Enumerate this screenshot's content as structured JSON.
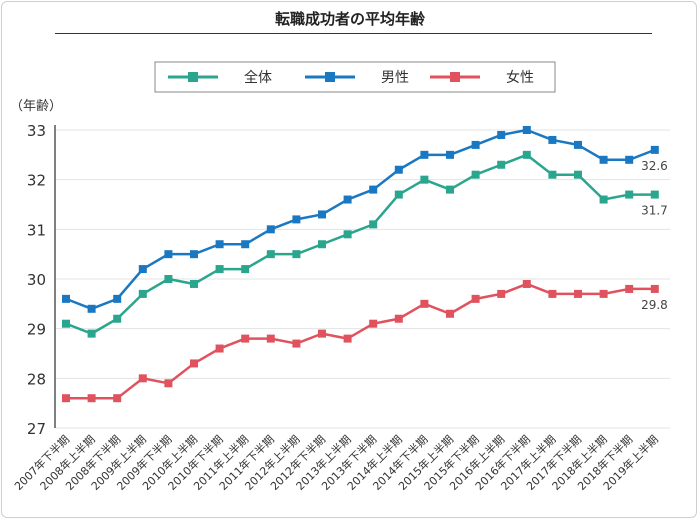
{
  "chart_data": {
    "type": "line",
    "title": "転職成功者の平均年齢",
    "ylabel": "（年齢）",
    "xlabel": "",
    "ylim": [
      27,
      33
    ],
    "yticks": [
      27,
      28,
      29,
      30,
      31,
      32,
      33
    ],
    "grid": true,
    "legend_position": "top-center",
    "categories": [
      "2007年下半期",
      "2008年上半期",
      "2008年下半期",
      "2009年上半期",
      "2009年下半期",
      "2010年上半期",
      "2010年下半期",
      "2011年上半期",
      "2011年下半期",
      "2012年上半期",
      "2012年下半期",
      "2013年上半期",
      "2013年下半期",
      "2014年上半期",
      "2014年下半期",
      "2015年上半期",
      "2015年下半期",
      "2016年上半期",
      "2016年下半期",
      "2017年上半期",
      "2017年下半期",
      "2018年上半期",
      "2018年下半期",
      "2019年上半期"
    ],
    "series": [
      {
        "name": "全体",
        "color": "#2aa58e",
        "end_label": "31.7",
        "values": [
          29.1,
          28.9,
          29.2,
          29.7,
          30.0,
          29.9,
          30.2,
          30.2,
          30.5,
          30.5,
          30.7,
          30.9,
          31.1,
          31.7,
          32.0,
          31.8,
          32.1,
          32.3,
          32.5,
          32.1,
          32.1,
          31.6,
          31.7,
          31.7
        ]
      },
      {
        "name": "男性",
        "color": "#1a78c2",
        "end_label": "32.6",
        "values": [
          29.6,
          29.4,
          29.6,
          30.2,
          30.5,
          30.5,
          30.7,
          30.7,
          31.0,
          31.2,
          31.3,
          31.6,
          31.8,
          32.2,
          32.5,
          32.5,
          32.7,
          32.9,
          33.0,
          32.8,
          32.7,
          32.4,
          32.4,
          32.6
        ]
      },
      {
        "name": "女性",
        "color": "#e0525e",
        "end_label": "29.8",
        "values": [
          27.6,
          27.6,
          27.6,
          28.0,
          27.9,
          28.3,
          28.6,
          28.8,
          28.8,
          28.7,
          28.9,
          28.8,
          29.1,
          29.2,
          29.5,
          29.3,
          29.6,
          29.7,
          29.9,
          29.7,
          29.7,
          29.7,
          29.8,
          29.8
        ]
      }
    ]
  }
}
